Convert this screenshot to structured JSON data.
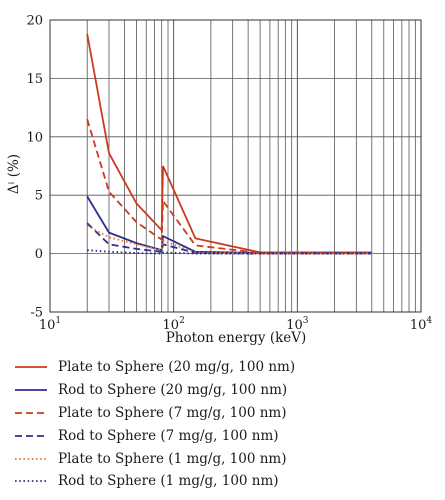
{
  "chart_data": {
    "type": "line",
    "xlabel": "Photon energy (keV)",
    "ylabel": "Δⁱ (%)",
    "x_scale": "log",
    "xlim": [
      10,
      10000
    ],
    "ylim": [
      -5,
      20
    ],
    "grid": true,
    "legend_position": "below",
    "x_tick_labels": [
      {
        "value": 10,
        "base": "10",
        "exp": "1"
      },
      {
        "value": 100,
        "base": "10",
        "exp": "2"
      },
      {
        "value": 1000,
        "base": "10",
        "exp": "3"
      },
      {
        "value": 10000,
        "base": "10",
        "exp": "4"
      }
    ],
    "y_ticks": [
      -5,
      0,
      5,
      10,
      15,
      20
    ],
    "y_tick_labels": [
      "-5",
      "0",
      "5",
      "10",
      "15",
      "20"
    ],
    "x_gridlines": [
      20,
      30,
      40,
      50,
      60,
      70,
      80,
      90,
      100,
      200,
      300,
      400,
      500,
      600,
      700,
      800,
      900,
      1000,
      2000,
      3000,
      4000,
      5000,
      6000,
      7000,
      8000,
      9000
    ],
    "series": [
      {
        "name": "Plate to Sphere (20 mg/g, 100 nm)",
        "color": "#cc3a1e",
        "dash": "solid",
        "x": [
          20,
          30,
          50,
          80,
          82,
          150,
          500,
          4000
        ],
        "y": [
          18.8,
          8.6,
          4.3,
          2.0,
          7.5,
          1.3,
          0.1,
          0.1
        ]
      },
      {
        "name": "Rod to Sphere (20 mg/g, 100 nm)",
        "color": "#2b2f8f",
        "dash": "solid",
        "x": [
          20,
          30,
          50,
          80,
          82,
          150,
          500,
          4000
        ],
        "y": [
          4.9,
          1.8,
          0.9,
          0.3,
          1.5,
          0.15,
          0.05,
          0.05
        ]
      },
      {
        "name": "Plate to Sphere (7 mg/g, 100 nm)",
        "color": "#cc3a1e",
        "dash": "dashed",
        "x": [
          20,
          30,
          50,
          80,
          82,
          150,
          500,
          4000
        ],
        "y": [
          11.5,
          5.3,
          2.7,
          1.2,
          4.5,
          0.7,
          0.05,
          0.05
        ]
      },
      {
        "name": "Rod to Sphere (7 mg/g, 100 nm)",
        "color": "#2b2f8f",
        "dash": "dashed",
        "x": [
          20,
          30,
          50,
          80,
          82,
          150,
          500,
          4000
        ],
        "y": [
          2.6,
          0.8,
          0.4,
          0.15,
          0.8,
          0.05,
          0.0,
          0.0
        ]
      },
      {
        "name": "Plate to Sphere (1 mg/g, 100 nm)",
        "color": "#e8703a",
        "dash": "dotted",
        "x": [
          20,
          30,
          50,
          80,
          82,
          150,
          500,
          4000
        ],
        "y": [
          2.4,
          1.4,
          0.8,
          0.3,
          1.1,
          0.1,
          0.0,
          0.0
        ]
      },
      {
        "name": "Rod to Sphere (1 mg/g, 100 nm)",
        "color": "#2b2f8f",
        "dash": "dotted",
        "x": [
          20,
          30,
          50,
          80,
          82,
          150,
          500,
          4000
        ],
        "y": [
          0.3,
          0.15,
          0.05,
          0.0,
          0.1,
          0.0,
          0.0,
          0.0
        ]
      }
    ]
  }
}
